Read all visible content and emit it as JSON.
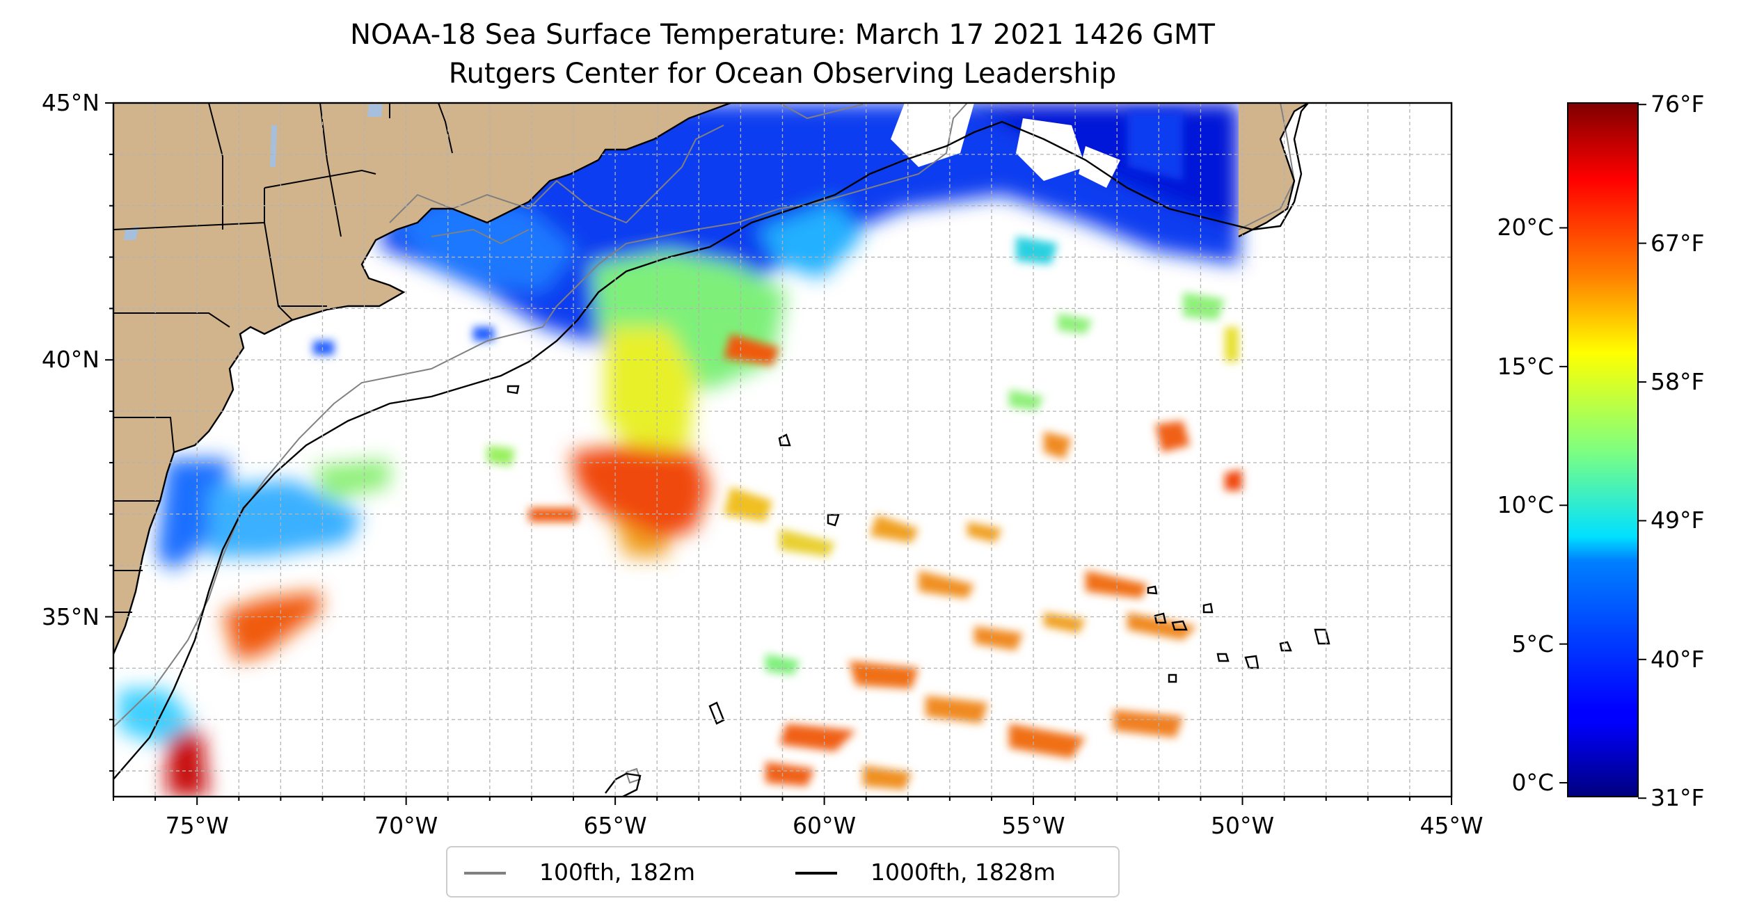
{
  "title": "NOAA-18 Sea Surface Temperature: March 17 2021 1426 GMT",
  "subtitle": "Rutgers Center for Ocean Observing Leadership",
  "map": {
    "lon_range": [
      -77,
      -45
    ],
    "lat_range": [
      31.5,
      45
    ],
    "lon_ticks": [
      {
        "value": -75,
        "label": "75°W"
      },
      {
        "value": -70,
        "label": "70°W"
      },
      {
        "value": -65,
        "label": "65°W"
      },
      {
        "value": -60,
        "label": "60°W"
      },
      {
        "value": -55,
        "label": "55°W"
      },
      {
        "value": -50,
        "label": "50°W"
      },
      {
        "value": -45,
        "label": "45°W"
      }
    ],
    "lat_ticks": [
      {
        "value": 45,
        "label": "45°N"
      },
      {
        "value": 40,
        "label": "40°N"
      },
      {
        "value": 35,
        "label": "35°N"
      }
    ],
    "grid": true,
    "colors": {
      "land": "#d2b48c",
      "lakes": "#a5bfdd",
      "isobath_100": "#808080",
      "isobath_1000": "#000000"
    }
  },
  "legend": {
    "placement": "bottom-center",
    "items": [
      {
        "label": "100fth, 182m",
        "color": "#808080"
      },
      {
        "label": "1000fth, 1828m",
        "color": "#000000"
      }
    ]
  },
  "colorbar": {
    "colormap": "jet",
    "celsius_range": [
      -0.5,
      24.5
    ],
    "celsius_ticks": [
      {
        "value": 0,
        "label": "0°C"
      },
      {
        "value": 5,
        "label": "5°C"
      },
      {
        "value": 10,
        "label": "10°C"
      },
      {
        "value": 15,
        "label": "15°C"
      },
      {
        "value": 20,
        "label": "20°C"
      }
    ],
    "fahrenheit_ticks": [
      {
        "value": 31,
        "label": "31°F"
      },
      {
        "value": 40,
        "label": "40°F"
      },
      {
        "value": 49,
        "label": "49°F"
      },
      {
        "value": 58,
        "label": "58°F"
      },
      {
        "value": 67,
        "label": "67°F"
      },
      {
        "value": 76,
        "label": "76°F"
      }
    ]
  }
}
